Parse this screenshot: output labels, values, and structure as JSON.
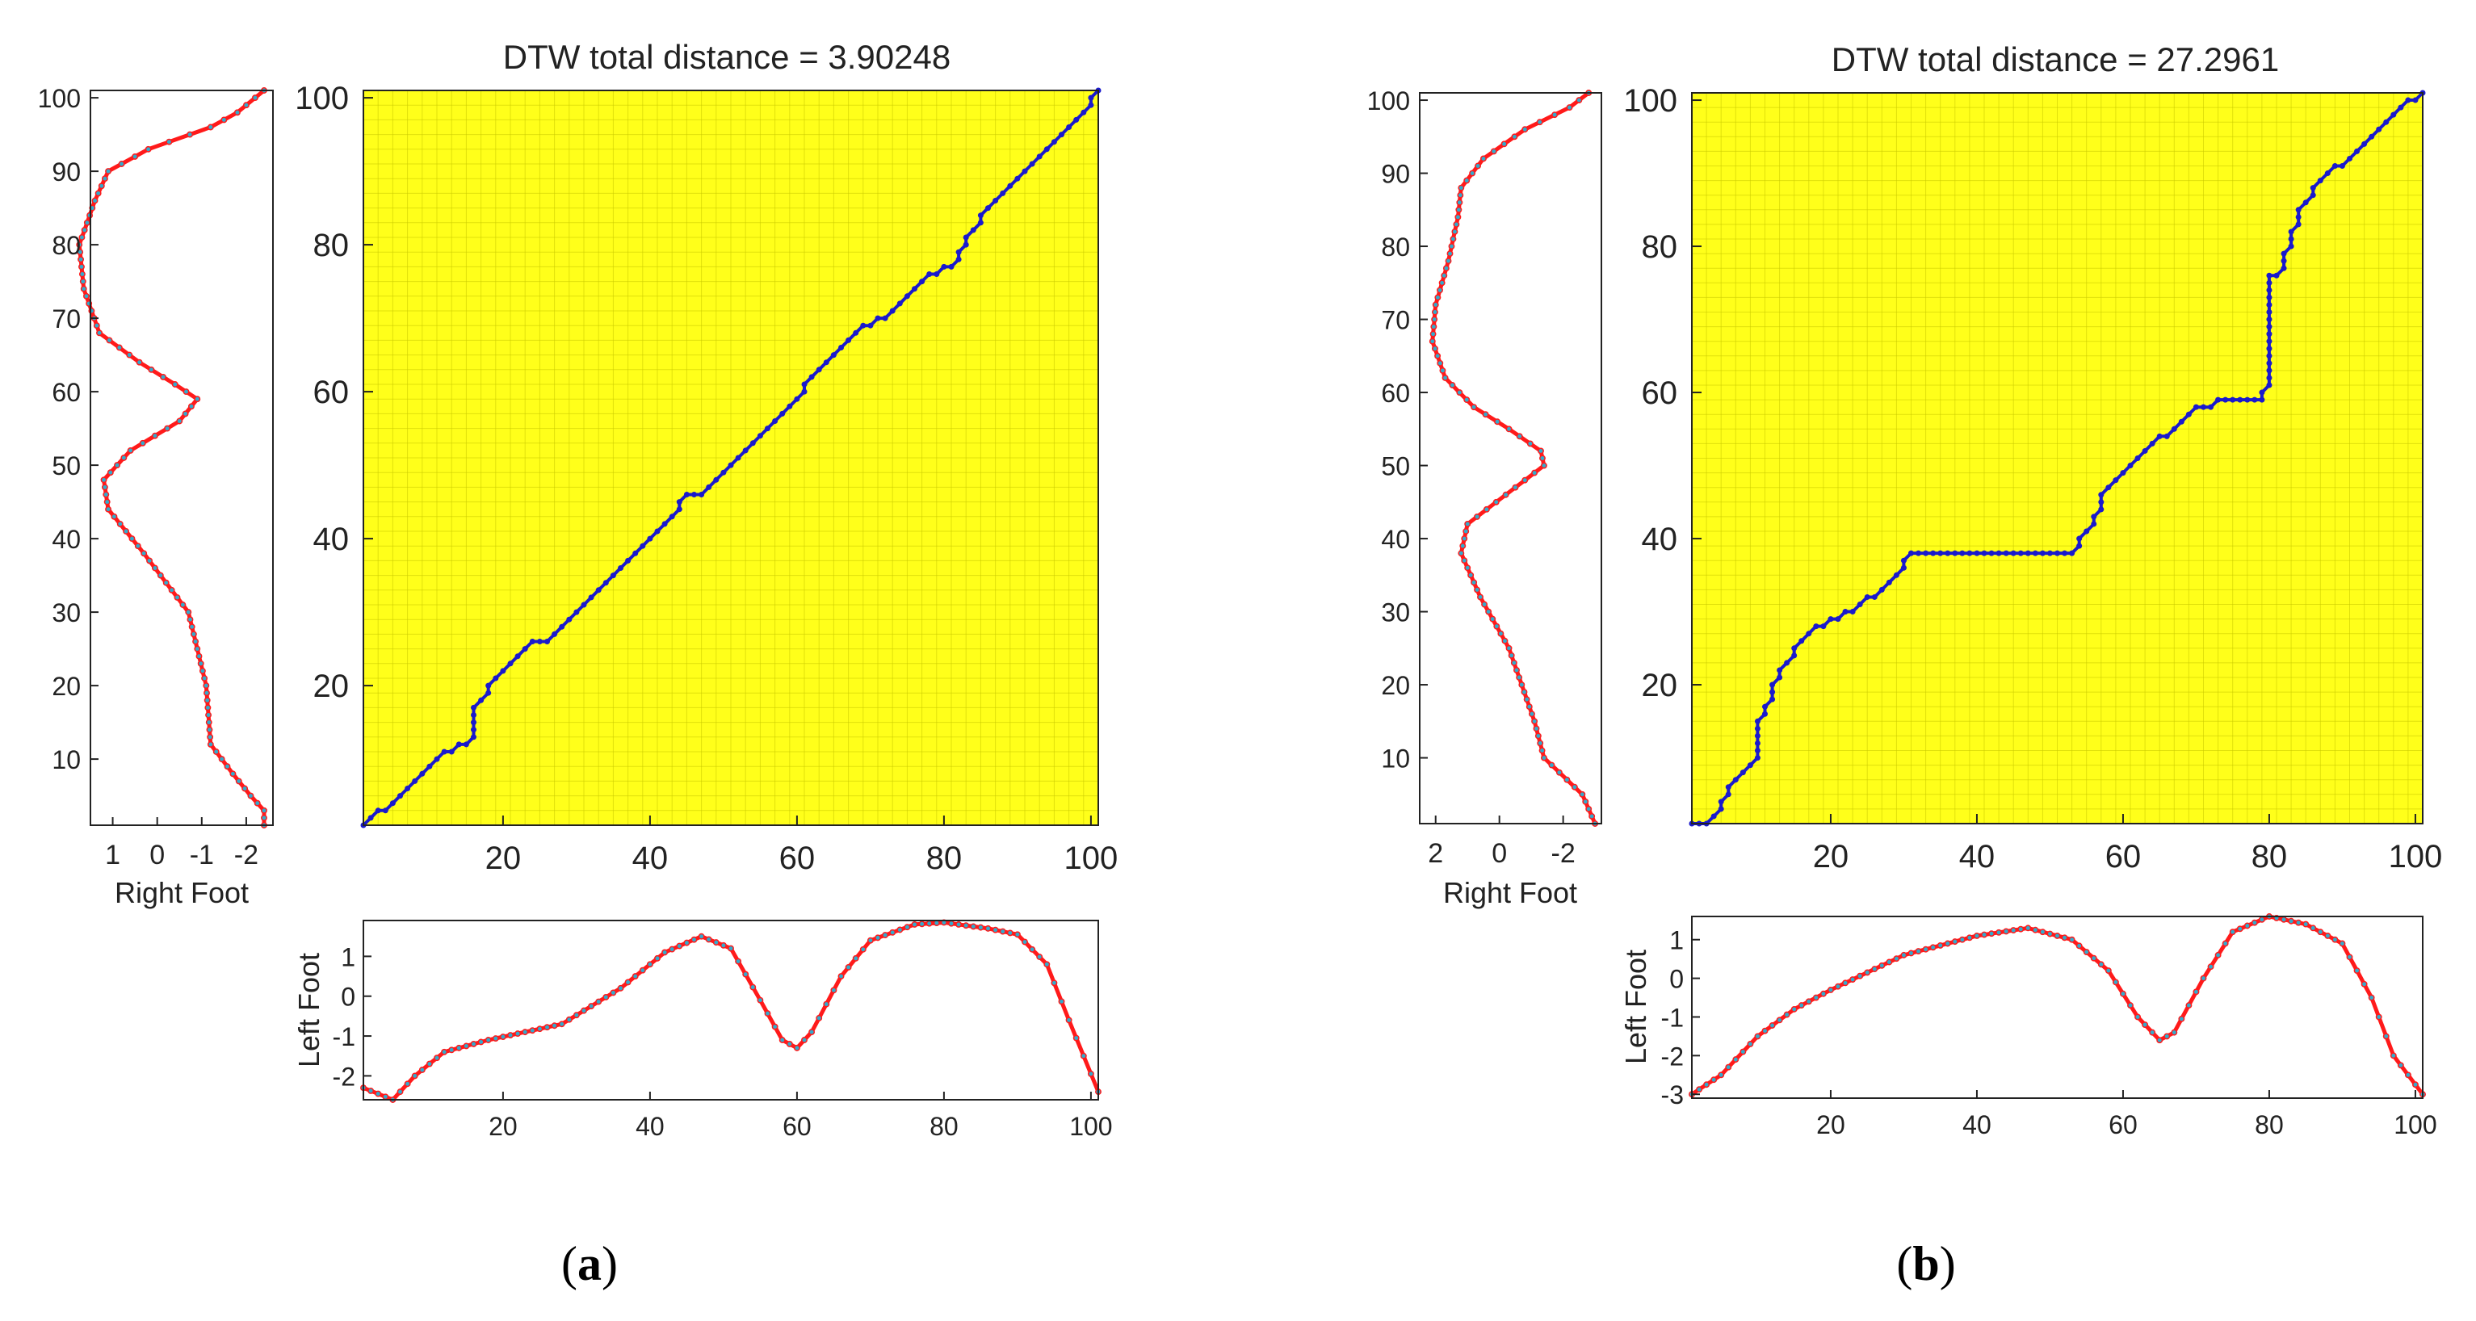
{
  "colors": {
    "background": "#ffffff",
    "panel_fill": "#ffff1a",
    "grid": "#c8c800",
    "path": "#1a1acc",
    "signal": "#ff1a1a",
    "signal_dot": "#33aacc",
    "axis": "#222222"
  },
  "chart_data": [
    {
      "id": "a",
      "caption": "a",
      "type": "line",
      "title": "DTW total distance = 3.90248",
      "warp_path": {
        "name": "",
        "xlim": [
          1,
          101
        ],
        "ylim": [
          1,
          101
        ],
        "xticks": [
          20,
          40,
          60,
          80,
          100
        ],
        "yticks": [
          20,
          40,
          60,
          80,
          100
        ],
        "knots": [
          [
            1,
            1
          ],
          [
            5,
            4
          ],
          [
            12,
            11
          ],
          [
            16,
            13
          ],
          [
            17,
            18
          ],
          [
            19,
            21
          ],
          [
            21,
            23
          ],
          [
            24,
            26
          ],
          [
            27,
            27
          ],
          [
            45,
            46
          ],
          [
            48,
            47
          ],
          [
            62,
            62
          ],
          [
            64,
            64
          ],
          [
            73,
            71
          ],
          [
            76,
            74
          ],
          [
            78,
            76
          ],
          [
            80,
            77
          ],
          [
            82,
            78
          ],
          [
            84,
            82
          ],
          [
            86,
            85
          ],
          [
            101,
            101
          ]
        ]
      },
      "right_foot": {
        "xlabel": "Right Foot",
        "xlim": [
          1.5,
          -2.6
        ],
        "ylim": [
          1,
          101
        ],
        "xticks": [
          1,
          0,
          -1,
          -2
        ],
        "xtick_labels": [
          "1",
          "0",
          "-1",
          "-2"
        ],
        "yticks": [
          10,
          20,
          30,
          40,
          50,
          60,
          70,
          80,
          90,
          100
        ],
        "knots": [
          [
            1,
            -2.4
          ],
          [
            3,
            -2.4
          ],
          [
            5,
            -2.1
          ],
          [
            8,
            -1.7
          ],
          [
            12,
            -1.2
          ],
          [
            20,
            -1.1
          ],
          [
            30,
            -0.7
          ],
          [
            38,
            0.3
          ],
          [
            44,
            1.1
          ],
          [
            48,
            1.2
          ],
          [
            52,
            0.6
          ],
          [
            56,
            -0.5
          ],
          [
            59,
            -0.9
          ],
          [
            61,
            -0.4
          ],
          [
            64,
            0.4
          ],
          [
            68,
            1.3
          ],
          [
            74,
            1.65
          ],
          [
            80,
            1.75
          ],
          [
            86,
            1.4
          ],
          [
            90,
            1.1
          ],
          [
            93,
            0.2
          ],
          [
            96,
            -1.2
          ],
          [
            98,
            -1.8
          ],
          [
            101,
            -2.4
          ]
        ]
      },
      "left_foot": {
        "ylabel": "Left Foot",
        "xlim": [
          1,
          101
        ],
        "ylim": [
          -2.6,
          1.9
        ],
        "xticks": [
          20,
          40,
          60,
          80,
          100
        ],
        "yticks": [
          1,
          0,
          -1,
          -2
        ],
        "ytick_labels": [
          "1",
          "0",
          "-1",
          "-2"
        ],
        "knots": [
          [
            1,
            -2.3
          ],
          [
            5,
            -2.6
          ],
          [
            8,
            -2.0
          ],
          [
            12,
            -1.4
          ],
          [
            18,
            -1.1
          ],
          [
            28,
            -0.7
          ],
          [
            36,
            0.2
          ],
          [
            42,
            1.1
          ],
          [
            47,
            1.5
          ],
          [
            51,
            1.2
          ],
          [
            55,
            -0.1
          ],
          [
            58,
            -1.1
          ],
          [
            60,
            -1.3
          ],
          [
            62,
            -0.9
          ],
          [
            66,
            0.5
          ],
          [
            70,
            1.4
          ],
          [
            76,
            1.8
          ],
          [
            80,
            1.85
          ],
          [
            86,
            1.7
          ],
          [
            90,
            1.55
          ],
          [
            94,
            0.8
          ],
          [
            97,
            -0.6
          ],
          [
            101,
            -2.4
          ]
        ]
      }
    },
    {
      "id": "b",
      "caption": "b",
      "type": "line",
      "title": "DTW total distance = 27.2961",
      "warp_path": {
        "name": "",
        "xlim": [
          1,
          101
        ],
        "ylim": [
          1,
          101
        ],
        "xticks": [
          20,
          40,
          60,
          80,
          100
        ],
        "yticks": [
          20,
          40,
          60,
          80,
          100
        ],
        "knots": [
          [
            1,
            1
          ],
          [
            4,
            2
          ],
          [
            7,
            7
          ],
          [
            10,
            10
          ],
          [
            10,
            15
          ],
          [
            12,
            18
          ],
          [
            13,
            21
          ],
          [
            14,
            23
          ],
          [
            16,
            26
          ],
          [
            20,
            29
          ],
          [
            24,
            31
          ],
          [
            27,
            33
          ],
          [
            29,
            35
          ],
          [
            31,
            38
          ],
          [
            53,
            38
          ],
          [
            55,
            41
          ],
          [
            57,
            44
          ],
          [
            58,
            47
          ],
          [
            60,
            49
          ],
          [
            62,
            51
          ],
          [
            64,
            53
          ],
          [
            67,
            55
          ],
          [
            70,
            58
          ],
          [
            73,
            59
          ],
          [
            79,
            59
          ],
          [
            80,
            61
          ],
          [
            80,
            76
          ],
          [
            82,
            77
          ],
          [
            83,
            80
          ],
          [
            84,
            83
          ],
          [
            85,
            86
          ],
          [
            87,
            89
          ],
          [
            91,
            92
          ],
          [
            95,
            96
          ],
          [
            101,
            101
          ]
        ]
      },
      "right_foot": {
        "xlabel": "Right Foot",
        "xlim": [
          2.5,
          -3.2
        ],
        "ylim": [
          1,
          101
        ],
        "xticks": [
          2,
          0,
          -2
        ],
        "xtick_labels": [
          "2",
          "0",
          "-2"
        ],
        "yticks": [
          10,
          20,
          30,
          40,
          50,
          60,
          70,
          80,
          90,
          100
        ],
        "knots": [
          [
            1,
            -3.0
          ],
          [
            5,
            -2.6
          ],
          [
            10,
            -1.4
          ],
          [
            15,
            -1.1
          ],
          [
            25,
            -0.3
          ],
          [
            32,
            0.6
          ],
          [
            38,
            1.2
          ],
          [
            42,
            1.0
          ],
          [
            46,
            -0.2
          ],
          [
            50,
            -1.4
          ],
          [
            52,
            -1.3
          ],
          [
            55,
            -0.3
          ],
          [
            58,
            0.8
          ],
          [
            62,
            1.7
          ],
          [
            67,
            2.1
          ],
          [
            72,
            2.0
          ],
          [
            78,
            1.6
          ],
          [
            84,
            1.3
          ],
          [
            88,
            1.2
          ],
          [
            92,
            0.5
          ],
          [
            96,
            -0.8
          ],
          [
            99,
            -2.2
          ],
          [
            101,
            -2.8
          ]
        ]
      },
      "left_foot": {
        "ylabel": "Left Foot",
        "xlim": [
          1,
          101
        ],
        "ylim": [
          -3.1,
          1.6
        ],
        "xticks": [
          20,
          40,
          60,
          80,
          100
        ],
        "yticks": [
          1,
          0,
          -1,
          -2,
          -3
        ],
        "ytick_labels": [
          "1",
          "0",
          "-1",
          "-2",
          "-3"
        ],
        "knots": [
          [
            1,
            -3.0
          ],
          [
            5,
            -2.5
          ],
          [
            10,
            -1.5
          ],
          [
            15,
            -0.8
          ],
          [
            20,
            -0.3
          ],
          [
            30,
            0.6
          ],
          [
            40,
            1.1
          ],
          [
            47,
            1.3
          ],
          [
            53,
            1.0
          ],
          [
            58,
            0.2
          ],
          [
            62,
            -1.0
          ],
          [
            65,
            -1.6
          ],
          [
            67,
            -1.4
          ],
          [
            71,
            0.0
          ],
          [
            75,
            1.2
          ],
          [
            80,
            1.6
          ],
          [
            85,
            1.4
          ],
          [
            90,
            0.9
          ],
          [
            94,
            -0.5
          ],
          [
            97,
            -2.0
          ],
          [
            101,
            -3.0
          ]
        ]
      }
    }
  ]
}
